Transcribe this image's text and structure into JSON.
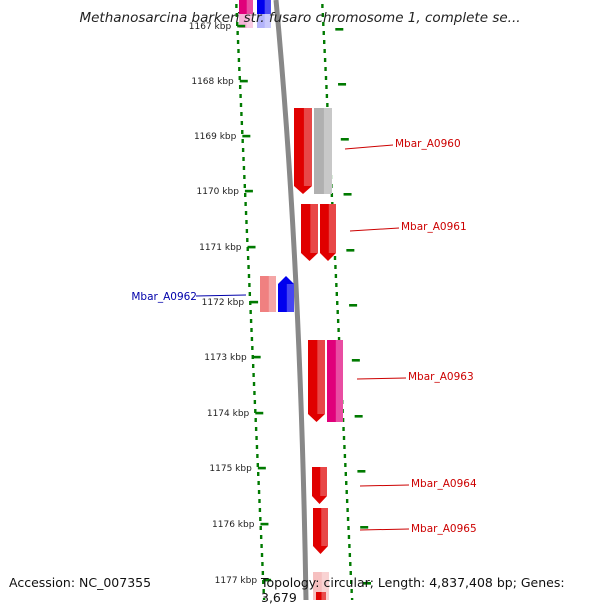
{
  "title": "Methanosarcina barkeri str. fusaro chromosome 1, complete se...",
  "footer": {
    "accession": "Accession: NC_007355",
    "topology": "Topology: circular; Length: 4,837,408 bp; Genes: 3,679"
  },
  "colors": {
    "gene_forward": "#e00000",
    "gene_reverse": "#0000ee",
    "gene_gray": "#b0b0b0",
    "gene_magenta": "#e0007a",
    "gene_pink": "#f08080",
    "backbone": "#888888",
    "tick": "#007a00",
    "label_red": "#cc0000",
    "label_blue": "#0000aa"
  },
  "ticks": [
    {
      "label": "1167 kbp"
    },
    {
      "label": "1168 kbp"
    },
    {
      "label": "1169 kbp"
    },
    {
      "label": "1170 kbp"
    },
    {
      "label": "1171 kbp"
    },
    {
      "label": "1172 kbp"
    },
    {
      "label": "1173 kbp"
    },
    {
      "label": "1174 kbp"
    },
    {
      "label": "1175 kbp"
    },
    {
      "label": "1176 kbp"
    },
    {
      "label": "1177 kbp"
    }
  ],
  "gene_labels": [
    {
      "text": "Mbar_A0960",
      "color": "#cc0000"
    },
    {
      "text": "Mbar_A0961",
      "color": "#cc0000"
    },
    {
      "text": "Mbar_A0962",
      "color": "#0000aa"
    },
    {
      "text": "Mbar_A0963",
      "color": "#cc0000"
    },
    {
      "text": "Mbar_A0964",
      "color": "#cc0000"
    },
    {
      "text": "Mbar_A0965",
      "color": "#cc0000"
    }
  ]
}
